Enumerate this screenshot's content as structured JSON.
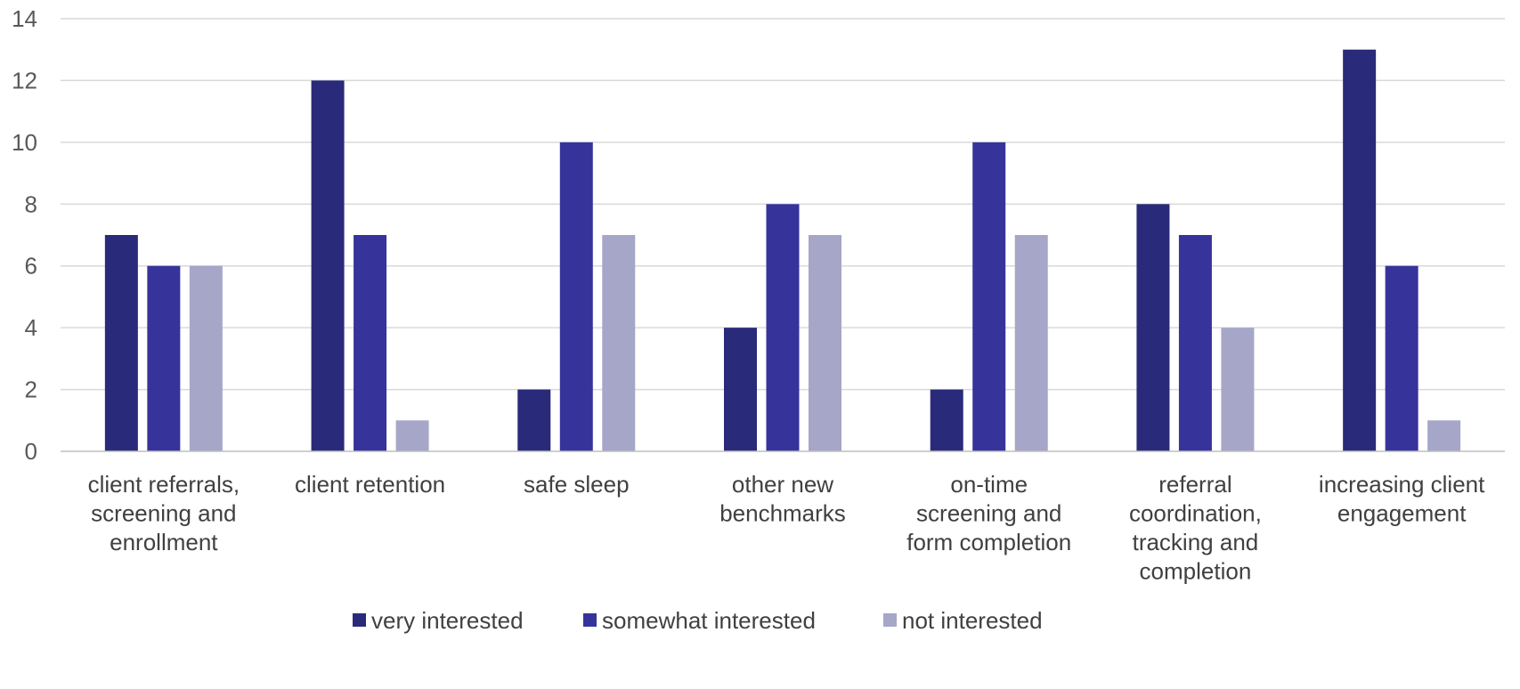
{
  "chart_data": {
    "type": "bar",
    "title": "",
    "xlabel": "",
    "ylabel": "",
    "ylim": [
      0,
      14
    ],
    "y_ticks": [
      0,
      2,
      4,
      6,
      8,
      10,
      12,
      14
    ],
    "grid": true,
    "legend_position": "bottom",
    "categories": [
      [
        "client referrals,",
        "screening and",
        "enrollment"
      ],
      [
        "client retention"
      ],
      [
        "safe sleep"
      ],
      [
        "other new",
        "benchmarks"
      ],
      [
        "on-time",
        "screening and",
        "form completion"
      ],
      [
        "referral",
        "coordination,",
        "tracking and",
        "completion"
      ],
      [
        "increasing client",
        "engagement"
      ]
    ],
    "series": [
      {
        "name": "very interested",
        "color": "#2a2a7a",
        "values": [
          7,
          12,
          2,
          4,
          2,
          8,
          13
        ]
      },
      {
        "name": "somewhat interested",
        "color": "#36349a",
        "values": [
          6,
          7,
          10,
          8,
          10,
          7,
          6
        ]
      },
      {
        "name": "not interested",
        "color": "#a6a6c8",
        "values": [
          6,
          1,
          7,
          7,
          7,
          4,
          1
        ]
      }
    ]
  }
}
